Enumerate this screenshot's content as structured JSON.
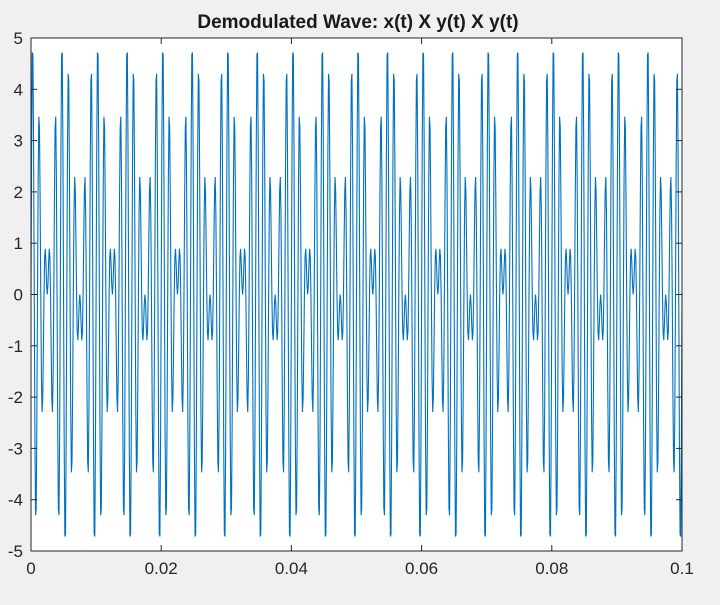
{
  "chart_data": {
    "type": "line",
    "title": "Demodulated Wave: x(t) X y(t) X y(t)",
    "xlabel": "",
    "ylabel": "",
    "xlim": [
      0,
      0.1
    ],
    "ylim": [
      -5,
      5
    ],
    "x_ticks": [
      "0",
      "0.02",
      "0.04",
      "0.06",
      "0.08",
      "0.1"
    ],
    "y_ticks": [
      "5",
      "4",
      "3",
      "2",
      "1",
      "0",
      "-1",
      "-2",
      "-3",
      "-4",
      "-5"
    ],
    "grid": false,
    "series": [
      {
        "color": "#0072bd",
        "signal": {
          "description": "sampled product of message and carrier",
          "amplitude": 5,
          "message_frequency_hz": 100,
          "carrier_frequency_hz": 1000,
          "message_phase_deg": 90,
          "sample_step": 0.0001,
          "x_start": 0,
          "x_end": 0.1
        }
      }
    ]
  },
  "colors": {
    "figure_background": "#f0f0f0",
    "axes_background": "#ffffff",
    "axes_color": "#262626",
    "line_color": "#0072bd"
  }
}
